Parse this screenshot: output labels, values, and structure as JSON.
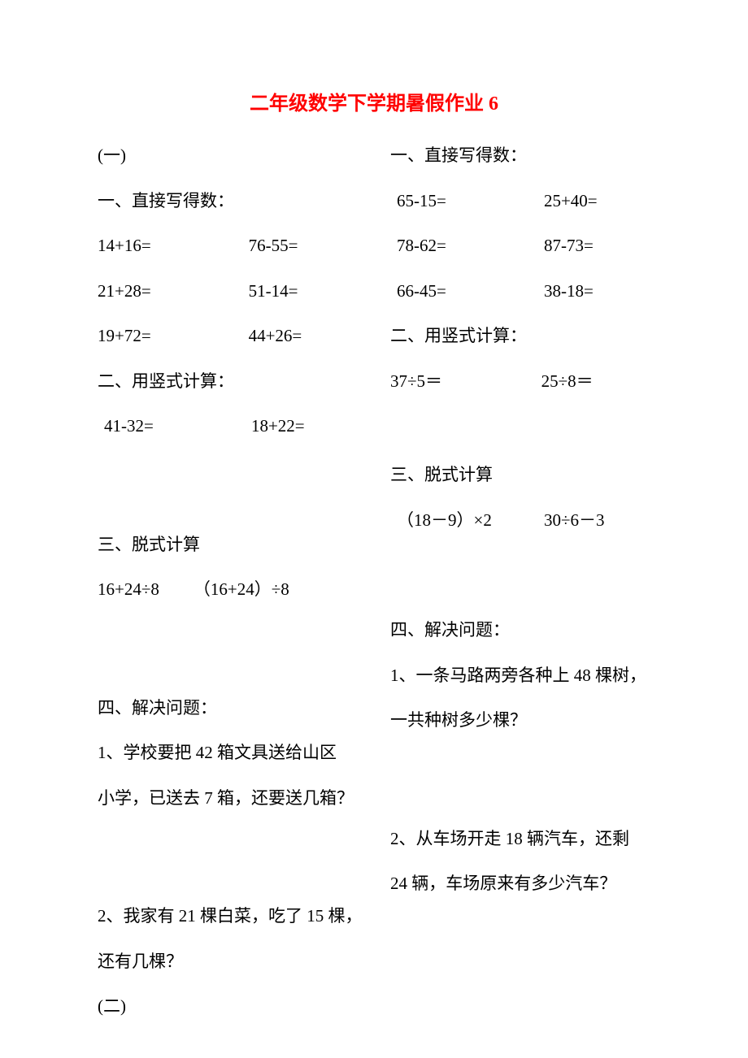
{
  "title": "二年级数学下学期暑假作业 6",
  "left": {
    "part_label": "(一)",
    "s1_heading": "一、直接写得数：",
    "s1_rows": [
      [
        "14+16=",
        "76-55="
      ],
      [
        "21+28=",
        "51-14="
      ],
      [
        "19+72=",
        "44+26="
      ]
    ],
    "s2_heading": "二、用竖式计算：",
    "s2_rows": [
      [
        "41-32=",
        "18+22="
      ]
    ],
    "s3_heading": "三、脱式计算",
    "s3_line": "16+24÷8  （16+24）÷8",
    "s4_heading": "四、解决问题：",
    "s4_q1a": "1、学校要把 42 箱文具送给山区",
    "s4_q1b": "小学，已送去 7 箱，还要送几箱？",
    "s4_q2a": "2、我家有 21 棵白菜，吃了 15 棵，",
    "s4_q2b": "还有几棵？",
    "part2_label": "(二)"
  },
  "right": {
    "s1_heading": "一、直接写得数：",
    "s1_rows": [
      [
        "65-15=",
        "25+40="
      ],
      [
        "78-62=",
        "87-73="
      ],
      [
        "66-45=",
        "38-18="
      ]
    ],
    "s2_heading": "二、用竖式计算：",
    "s2_rows": [
      [
        "37÷5＝",
        "25÷8＝"
      ]
    ],
    "s3_heading": "三、脱式计算",
    "s3_rows": [
      [
        "（18－9）×2",
        "30÷6－3"
      ]
    ],
    "s4_heading": "四、解决问题：",
    "s4_q1a": "1、一条马路两旁各种上 48 棵树，",
    "s4_q1b": "一共种树多少棵？",
    "s4_q2a": "2、从车场开走 18 辆汽车，还剩",
    "s4_q2b": "24 辆，车场原来有多少汽车？"
  }
}
